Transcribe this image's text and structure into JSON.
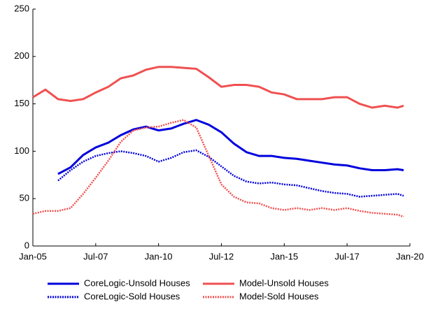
{
  "chart_data": {
    "type": "line",
    "x": [
      "2005-01",
      "2005-07",
      "2006-01",
      "2006-07",
      "2007-01",
      "2007-07",
      "2008-01",
      "2008-07",
      "2009-01",
      "2009-07",
      "2010-01",
      "2010-07",
      "2011-01",
      "2011-07",
      "2012-01",
      "2012-07",
      "2013-01",
      "2013-07",
      "2014-01",
      "2014-07",
      "2015-01",
      "2015-07",
      "2016-01",
      "2016-07",
      "2017-01",
      "2017-07",
      "2018-01",
      "2018-07",
      "2019-01",
      "2019-07",
      "2019-10"
    ],
    "xlim": [
      "2005-01",
      "2020-01"
    ],
    "xticks": [
      {
        "value": "2005-01",
        "label": "Jan-05"
      },
      {
        "value": "2007-07",
        "label": "Jul-07"
      },
      {
        "value": "2010-01",
        "label": "Jan-10"
      },
      {
        "value": "2012-07",
        "label": "Jul-12"
      },
      {
        "value": "2015-01",
        "label": "Jan-15"
      },
      {
        "value": "2017-07",
        "label": "Jul-17"
      },
      {
        "value": "2020-01",
        "label": "Jan-20"
      }
    ],
    "ylim": [
      0,
      250
    ],
    "yticks": [
      0,
      50,
      100,
      150,
      200,
      250
    ],
    "series": [
      {
        "name": "CoreLogic-Unsold Houses",
        "color": "#0000dd",
        "dash": "solid",
        "values": [
          null,
          null,
          76,
          83,
          96,
          104,
          109,
          117,
          123,
          126,
          122,
          124,
          129,
          133,
          128,
          120,
          108,
          99,
          95,
          95,
          93,
          92,
          90,
          88,
          86,
          85,
          82,
          80,
          80,
          81,
          80
        ]
      },
      {
        "name": "Model-Unsold Houses",
        "color": "#f05050",
        "dash": "solid",
        "values": [
          157,
          165,
          155,
          153,
          155,
          162,
          168,
          177,
          180,
          186,
          189,
          189,
          188,
          187,
          178,
          168,
          170,
          170,
          168,
          162,
          160,
          155,
          155,
          155,
          157,
          157,
          150,
          146,
          148,
          146,
          148
        ]
      },
      {
        "name": "CoreLogic-Sold Houses",
        "color": "#0000dd",
        "dash": "dotted",
        "values": [
          null,
          null,
          69,
          80,
          89,
          95,
          98,
          100,
          98,
          95,
          89,
          93,
          99,
          101,
          94,
          84,
          74,
          68,
          66,
          67,
          65,
          64,
          61,
          58,
          56,
          55,
          52,
          53,
          54,
          55,
          53
        ]
      },
      {
        "name": "Model-Sold Houses",
        "color": "#f05050",
        "dash": "dotted",
        "values": [
          34,
          37,
          37,
          40,
          55,
          72,
          90,
          110,
          122,
          125,
          126,
          130,
          133,
          125,
          95,
          65,
          52,
          46,
          45,
          40,
          38,
          40,
          38,
          40,
          38,
          40,
          37,
          35,
          34,
          33,
          31
        ]
      }
    ]
  }
}
